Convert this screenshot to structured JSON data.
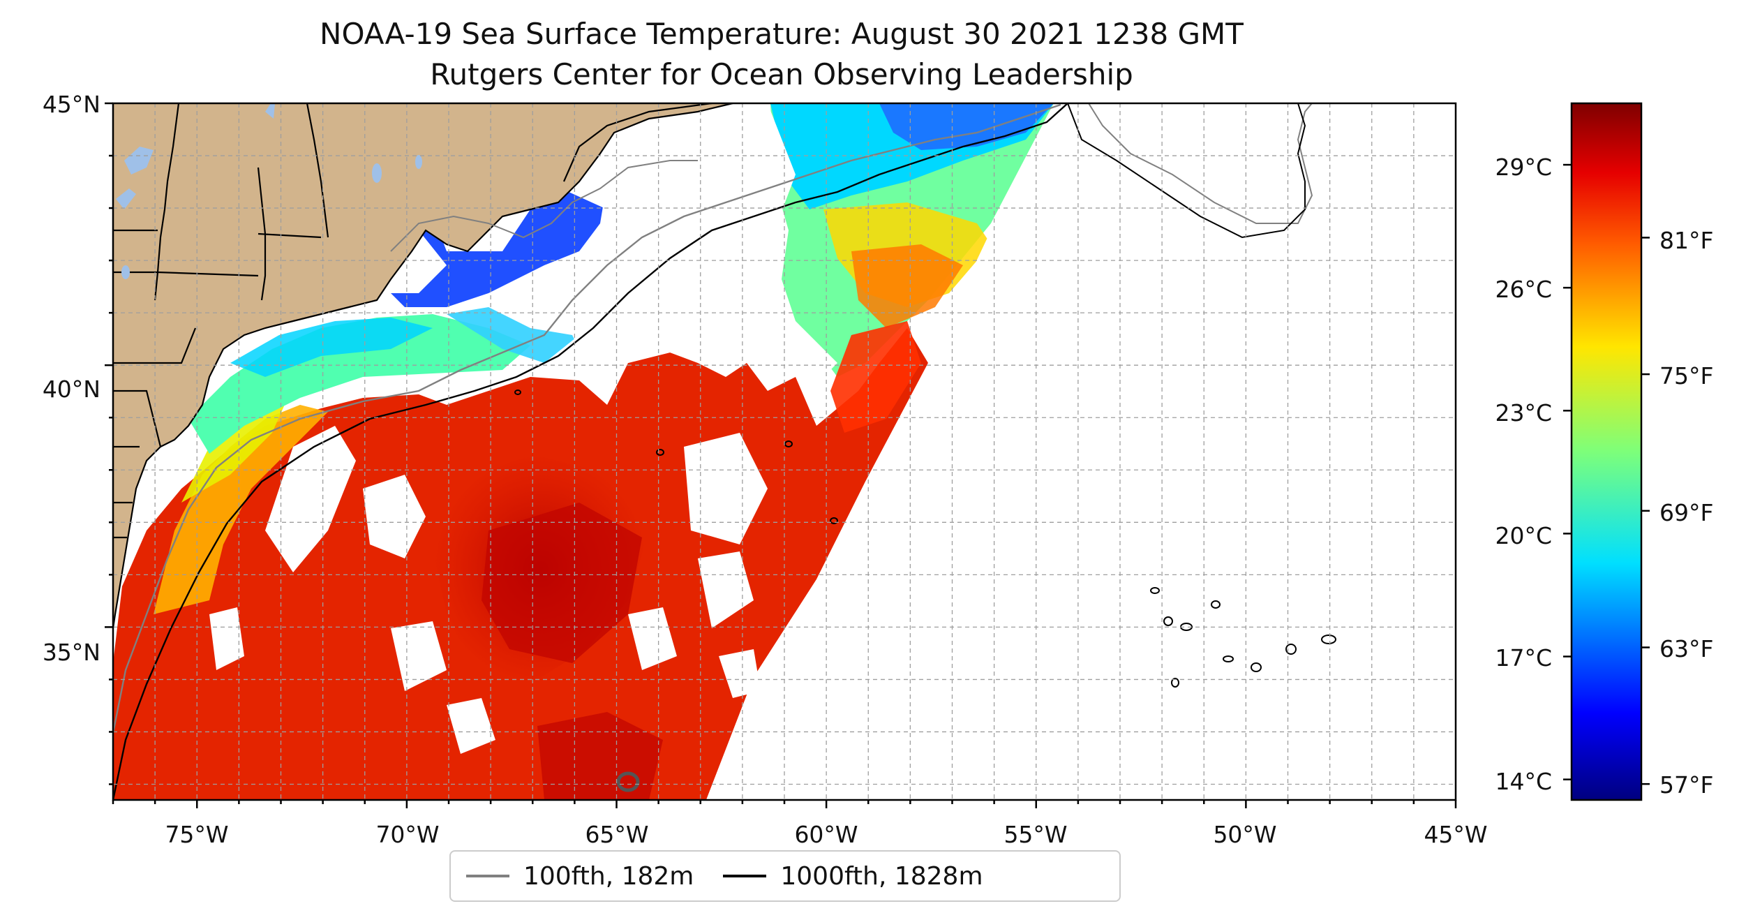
{
  "title": {
    "line1": "NOAA-19 Sea Surface Temperature: August 30 2021 1238 GMT",
    "line2": "Rutgers Center for Ocean Observing Leadership"
  },
  "map": {
    "lon_range": [
      -77,
      -45
    ],
    "lat_range": [
      31.7,
      45
    ],
    "lat_ticks": [
      "45°N",
      "40°N",
      "35°N"
    ],
    "lon_ticks": [
      "75°W",
      "70°W",
      "65°W",
      "60°W",
      "55°W",
      "50°W",
      "45°W"
    ],
    "gridlines": "dashed",
    "colors": {
      "land": "#d2b48c",
      "water_bodies": "#9fc0e8",
      "isobath_100fth": "#808080",
      "isobath_1000fth": "#000000",
      "no_data": "#ffffff"
    }
  },
  "colorbar": {
    "colormap": "jet",
    "celsius_ticks": [
      "29°C",
      "26°C",
      "23°C",
      "20°C",
      "17°C",
      "14°C"
    ],
    "fahrenheit_ticks": [
      "81°F",
      "75°F",
      "69°F",
      "63°F",
      "57°F"
    ],
    "celsius_min": 13.5,
    "celsius_max": 30.5
  },
  "legend": {
    "placement": "bottom-center",
    "items": [
      {
        "label": "100fth, 182m",
        "color": "#808080"
      },
      {
        "label": "1000fth, 1828m",
        "color": "#000000"
      }
    ]
  }
}
